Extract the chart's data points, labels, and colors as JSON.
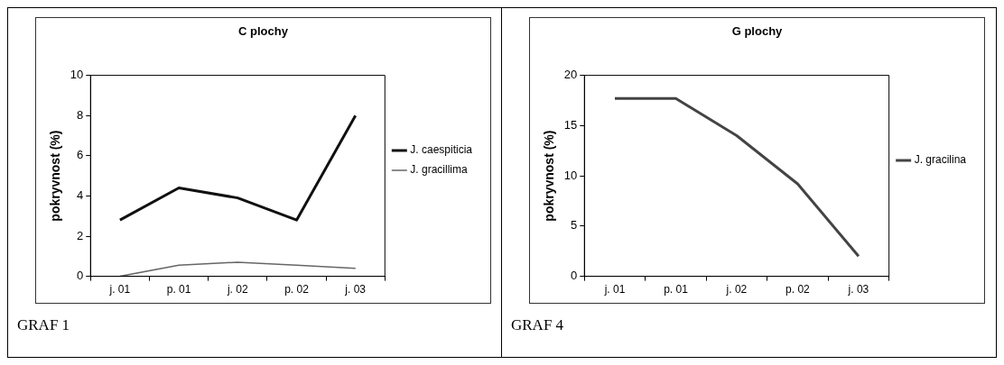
{
  "chart_data": [
    {
      "type": "line",
      "title": "C plochy",
      "ylabel": "pokryvnost (%)",
      "categories": [
        "j. 01",
        "p. 01",
        "j. 02",
        "p. 02",
        "j. 03"
      ],
      "series": [
        {
          "name": "J. caespiticia",
          "color": "#111111",
          "values": [
            2.8,
            4.4,
            3.9,
            2.8,
            8.0
          ]
        },
        {
          "name": "J. gracillima",
          "color": "#666666",
          "values": [
            0,
            0.55,
            0.7,
            0.55,
            0.4
          ]
        }
      ],
      "ylim": [
        0,
        10
      ],
      "yticks": [
        0,
        2,
        4,
        6,
        8,
        10
      ],
      "grid": false,
      "legend": "right",
      "annotations": [
        "GRAF 1"
      ]
    },
    {
      "type": "line",
      "title": "G plochy",
      "ylabel": "pokryvnost (%)",
      "categories": [
        "j. 01",
        "p. 01",
        "j. 02",
        "p. 02",
        "j. 03"
      ],
      "series": [
        {
          "name": "J. gracilina",
          "color": "#444444",
          "values": [
            17.7,
            17.7,
            14,
            9.2,
            2
          ]
        }
      ],
      "ylim": [
        0,
        20
      ],
      "yticks": [
        0,
        5,
        10,
        15,
        20
      ],
      "grid": false,
      "legend": "right",
      "annotations": [
        "GRAF 4"
      ]
    }
  ]
}
